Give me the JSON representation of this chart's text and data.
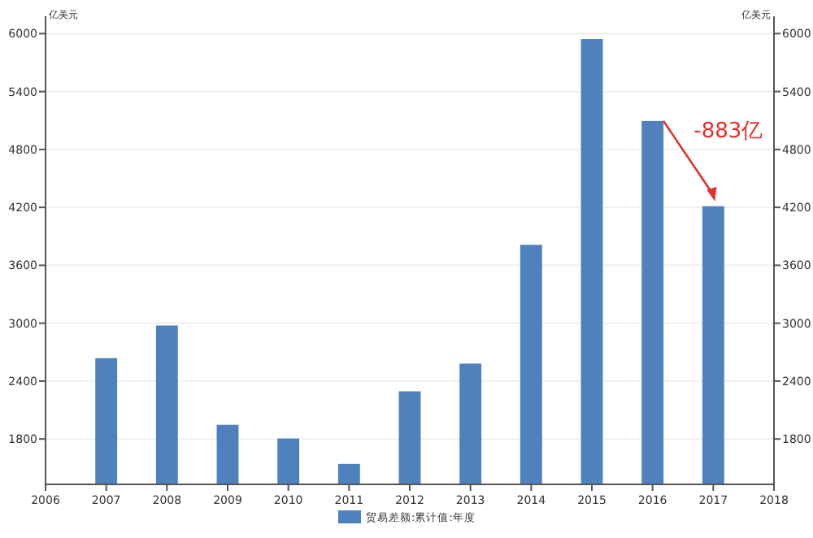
{
  "chart_data": {
    "type": "bar",
    "ylabel": "亿美元",
    "y2label": "亿美元",
    "x": [
      2007,
      2008,
      2009,
      2010,
      2011,
      2012,
      2013,
      2014,
      2015,
      2016,
      2017
    ],
    "series": [
      {
        "name": "贸易差额:累计值:年度",
        "color": "#4f81bd",
        "values": [
          2638,
          2976,
          1947,
          1805,
          1542,
          2294,
          2581,
          3812,
          5944,
          5095,
          4212
        ]
      }
    ],
    "xlim": [
      2006,
      2018
    ],
    "xticks": [
      2006,
      2007,
      2008,
      2009,
      2010,
      2011,
      2012,
      2013,
      2014,
      2015,
      2016,
      2017,
      2018
    ],
    "ylim": [
      1330,
      6180
    ],
    "yticks": [
      1800,
      2400,
      3000,
      3600,
      4200,
      4800,
      5400,
      6000
    ],
    "y2lim": [
      1330,
      6180
    ],
    "y2ticks": [
      1800,
      2400,
      3000,
      3600,
      4200,
      4800,
      5400,
      6000
    ],
    "grid": "y",
    "legend": "bottom",
    "annotations": [
      "-883亿"
    ]
  }
}
